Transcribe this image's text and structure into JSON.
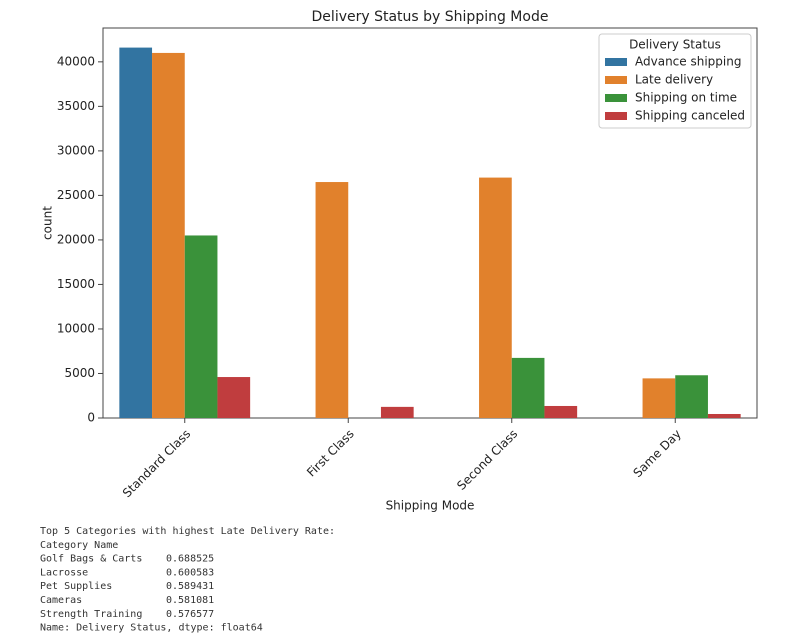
{
  "chart_data": {
    "type": "bar",
    "title": "Delivery Status by Shipping Mode",
    "xlabel": "Shipping Mode",
    "ylabel": "count",
    "categories": [
      "Standard Class",
      "First Class",
      "Second Class",
      "Same Day"
    ],
    "series": [
      {
        "name": "Advance shipping",
        "color": "#3274a1",
        "values": [
          41600,
          null,
          null,
          null
        ]
      },
      {
        "name": "Late delivery",
        "color": "#e1812c",
        "values": [
          41000,
          26500,
          27000,
          4450
        ]
      },
      {
        "name": "Shipping on time",
        "color": "#3a923a",
        "values": [
          20500,
          null,
          6750,
          4800
        ]
      },
      {
        "name": "Shipping canceled",
        "color": "#c03d3e",
        "values": [
          4600,
          1250,
          1350,
          450
        ]
      }
    ],
    "legend_title": "Delivery Status",
    "legend": "upper right",
    "ylim": [
      0,
      43800
    ],
    "yticks": [
      0,
      5000,
      10000,
      15000,
      20000,
      25000,
      30000,
      35000,
      40000
    ]
  },
  "output": {
    "title": "Top 5 Categories with highest Late Delivery Rate:",
    "index_name": "Category Name",
    "rows": [
      [
        "Golf Bags & Carts",
        0.688525
      ],
      [
        "Lacrosse",
        0.600583
      ],
      [
        "Pet Supplies",
        0.589431
      ],
      [
        "Cameras",
        0.581081
      ],
      [
        "Strength Training",
        0.576577
      ]
    ],
    "footer": "Name: Delivery Status, dtype: float64"
  }
}
